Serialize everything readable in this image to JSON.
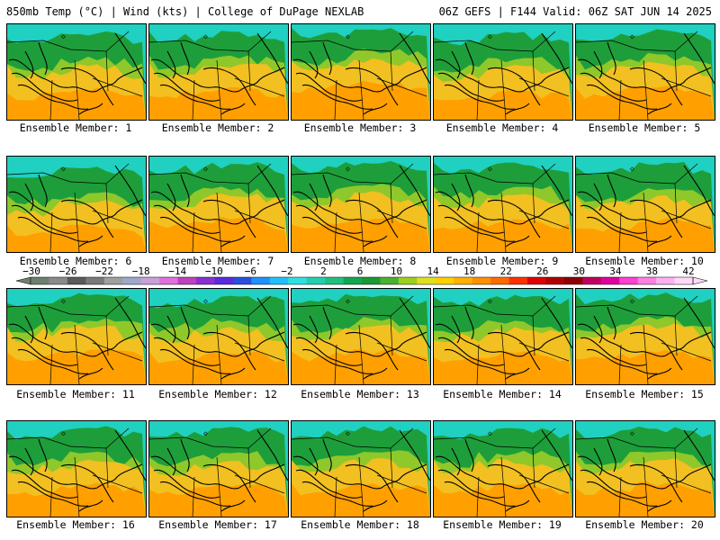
{
  "header": {
    "left_title": "850mb Temp (°C) | Wind (kts) | College of DuPage NEXLAB",
    "right_title": "06Z GEFS | F144 Valid: 06Z SAT JUN 14 2025"
  },
  "panels": [
    {
      "label": "Ensemble Member: 1",
      "member": 1,
      "warmth": 0.45
    },
    {
      "label": "Ensemble Member: 2",
      "member": 2,
      "warmth": 0.55
    },
    {
      "label": "Ensemble Member: 3",
      "member": 3,
      "warmth": 0.85
    },
    {
      "label": "Ensemble Member: 4",
      "member": 4,
      "warmth": 0.35
    },
    {
      "label": "Ensemble Member: 5",
      "member": 5,
      "warmth": 0.6
    },
    {
      "label": "Ensemble Member: 6",
      "member": 6,
      "warmth": 0.25
    },
    {
      "label": "Ensemble Member: 7",
      "member": 7,
      "warmth": 0.6
    },
    {
      "label": "Ensemble Member: 8",
      "member": 8,
      "warmth": 0.7
    },
    {
      "label": "Ensemble Member: 9",
      "member": 9,
      "warmth": 0.6
    },
    {
      "label": "Ensemble Member: 10",
      "member": 10,
      "warmth": 0.55
    },
    {
      "label": "Ensemble Member: 11",
      "member": 11,
      "warmth": 0.65
    },
    {
      "label": "Ensemble Member: 12",
      "member": 12,
      "warmth": 0.55
    },
    {
      "label": "Ensemble Member: 13",
      "member": 13,
      "warmth": 0.65
    },
    {
      "label": "Ensemble Member: 14",
      "member": 14,
      "warmth": 0.6
    },
    {
      "label": "Ensemble Member: 15",
      "member": 15,
      "warmth": 0.7
    },
    {
      "label": "Ensemble Member: 16",
      "member": 16,
      "warmth": 0.55
    },
    {
      "label": "Ensemble Member: 17",
      "member": 17,
      "warmth": 0.55
    },
    {
      "label": "Ensemble Member: 18",
      "member": 18,
      "warmth": 0.6
    },
    {
      "label": "Ensemble Member: 19",
      "member": 19,
      "warmth": 0.55
    },
    {
      "label": "Ensemble Member: 20",
      "member": 20,
      "warmth": 0.6
    }
  ],
  "colorbar": {
    "labels": [
      "−30",
      "−26",
      "−22",
      "−18",
      "−14",
      "−10",
      "−6",
      "−2",
      "2",
      "6",
      "10",
      "14",
      "18",
      "22",
      "26",
      "30",
      "34",
      "38",
      "42"
    ],
    "colors": [
      "#6f7f6f",
      "#8a8a8a",
      "#5a5a5a",
      "#7a7a7a",
      "#a0a0a0",
      "#9fa8c8",
      "#c9a0d8",
      "#e070e0",
      "#c040c0",
      "#8b2fd0",
      "#5a2ae0",
      "#2a4fe0",
      "#1e90ff",
      "#20c0ff",
      "#30e0e0",
      "#20d0b0",
      "#20c080",
      "#10a850",
      "#1a9a33",
      "#4cb030",
      "#9cd020",
      "#e0e020",
      "#ffd000",
      "#ffb000",
      "#ff9000",
      "#ff6a00",
      "#ff3000",
      "#e00000",
      "#b00000",
      "#8b0000",
      "#c00060",
      "#e000a0",
      "#ff40d0",
      "#ff80e0",
      "#ffb0f0",
      "#ffd8f8"
    ]
  },
  "legend_palette": {
    "cold": "#20d0c0",
    "mid": "#1e9e3a",
    "warm": "#f2c020",
    "hot": "#ffa000",
    "coast": "#000000"
  }
}
